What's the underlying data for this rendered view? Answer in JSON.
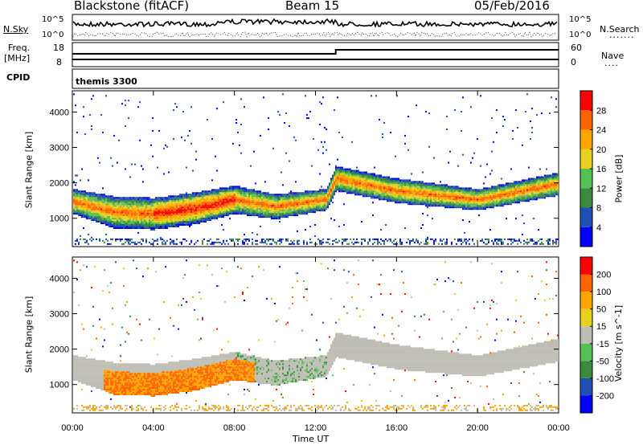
{
  "header": {
    "station": "Blackstone (fitACF)",
    "beam": "Beam 15",
    "date": "05/Feb/2016"
  },
  "top_panels": {
    "nsky_label": "N.Sky",
    "nsearch_label": "N.Search",
    "nsky_ticks": [
      "10^5",
      "10^0"
    ],
    "nsearch_ticks": [
      "10^5",
      "10^0"
    ],
    "freq_label": "Freq.",
    "freq_unit": "[MHz]",
    "freq_ticks": [
      "18",
      "8"
    ],
    "nave_label": "Nave",
    "nave_ticks": [
      "60",
      "0"
    ],
    "cpid_label": "CPID",
    "cpid_value": "themis 3300"
  },
  "colors": {
    "power_scale": [
      "#0000ff",
      "#1f4fb4",
      "#3b8a3b",
      "#55c055",
      "#e6d21e",
      "#ffa500",
      "#ff6400",
      "#ff0000"
    ],
    "velocity_scale": [
      "#ff0000",
      "#ff6400",
      "#ffa500",
      "#e6d21e",
      "#bdbdb5",
      "#55c055",
      "#3b8a3b",
      "#1f4fb4",
      "#0000ff"
    ],
    "ground_scatter": "#bdbdb5"
  },
  "chart_data": [
    {
      "type": "heatmap",
      "name": "power",
      "ylabel": "Slant Range [km]",
      "yticks": [
        "1000",
        "2000",
        "3000",
        "4000"
      ],
      "ylim": [
        200,
        4600
      ],
      "xticks": [
        "00:00",
        "04:00",
        "08:00",
        "12:00",
        "16:00",
        "20:00",
        "00:00"
      ],
      "xlim_hours": [
        0,
        24
      ],
      "colorbar": {
        "label": "Power [dB]",
        "ticks": [
          "4",
          "8",
          "12",
          "16",
          "20",
          "24",
          "28"
        ],
        "range": [
          0,
          30
        ]
      },
      "main_band_km": [
        {
          "t": 0.0,
          "center": 1450,
          "width": 700
        },
        {
          "t": 2.0,
          "center": 1150,
          "width": 900
        },
        {
          "t": 4.0,
          "center": 1100,
          "width": 900
        },
        {
          "t": 6.0,
          "center": 1250,
          "width": 900
        },
        {
          "t": 8.0,
          "center": 1500,
          "width": 800
        },
        {
          "t": 10.0,
          "center": 1300,
          "width": 700
        },
        {
          "t": 12.5,
          "center": 1500,
          "width": 600
        },
        {
          "t": 13.0,
          "center": 2100,
          "width": 700
        },
        {
          "t": 16.0,
          "center": 1750,
          "width": 700
        },
        {
          "t": 20.0,
          "center": 1500,
          "width": 600
        },
        {
          "t": 24.0,
          "center": 1950,
          "width": 650
        }
      ]
    },
    {
      "type": "heatmap",
      "name": "velocity",
      "ylabel": "Slant Range [km]",
      "yticks": [
        "1000",
        "2000",
        "3000",
        "4000"
      ],
      "ylim": [
        200,
        4600
      ],
      "xticks": [
        "00:00",
        "04:00",
        "08:00",
        "12:00",
        "16:00",
        "20:00",
        "00:00"
      ],
      "xlim_hours": [
        0,
        24
      ],
      "xlabel": "Time UT",
      "colorbar": {
        "label": "Velocity [m s^-1]",
        "ticks": [
          "200",
          "100",
          "50",
          "15",
          "-15",
          "-50",
          "-100",
          "-200"
        ],
        "range": [
          -250,
          250
        ]
      }
    }
  ]
}
